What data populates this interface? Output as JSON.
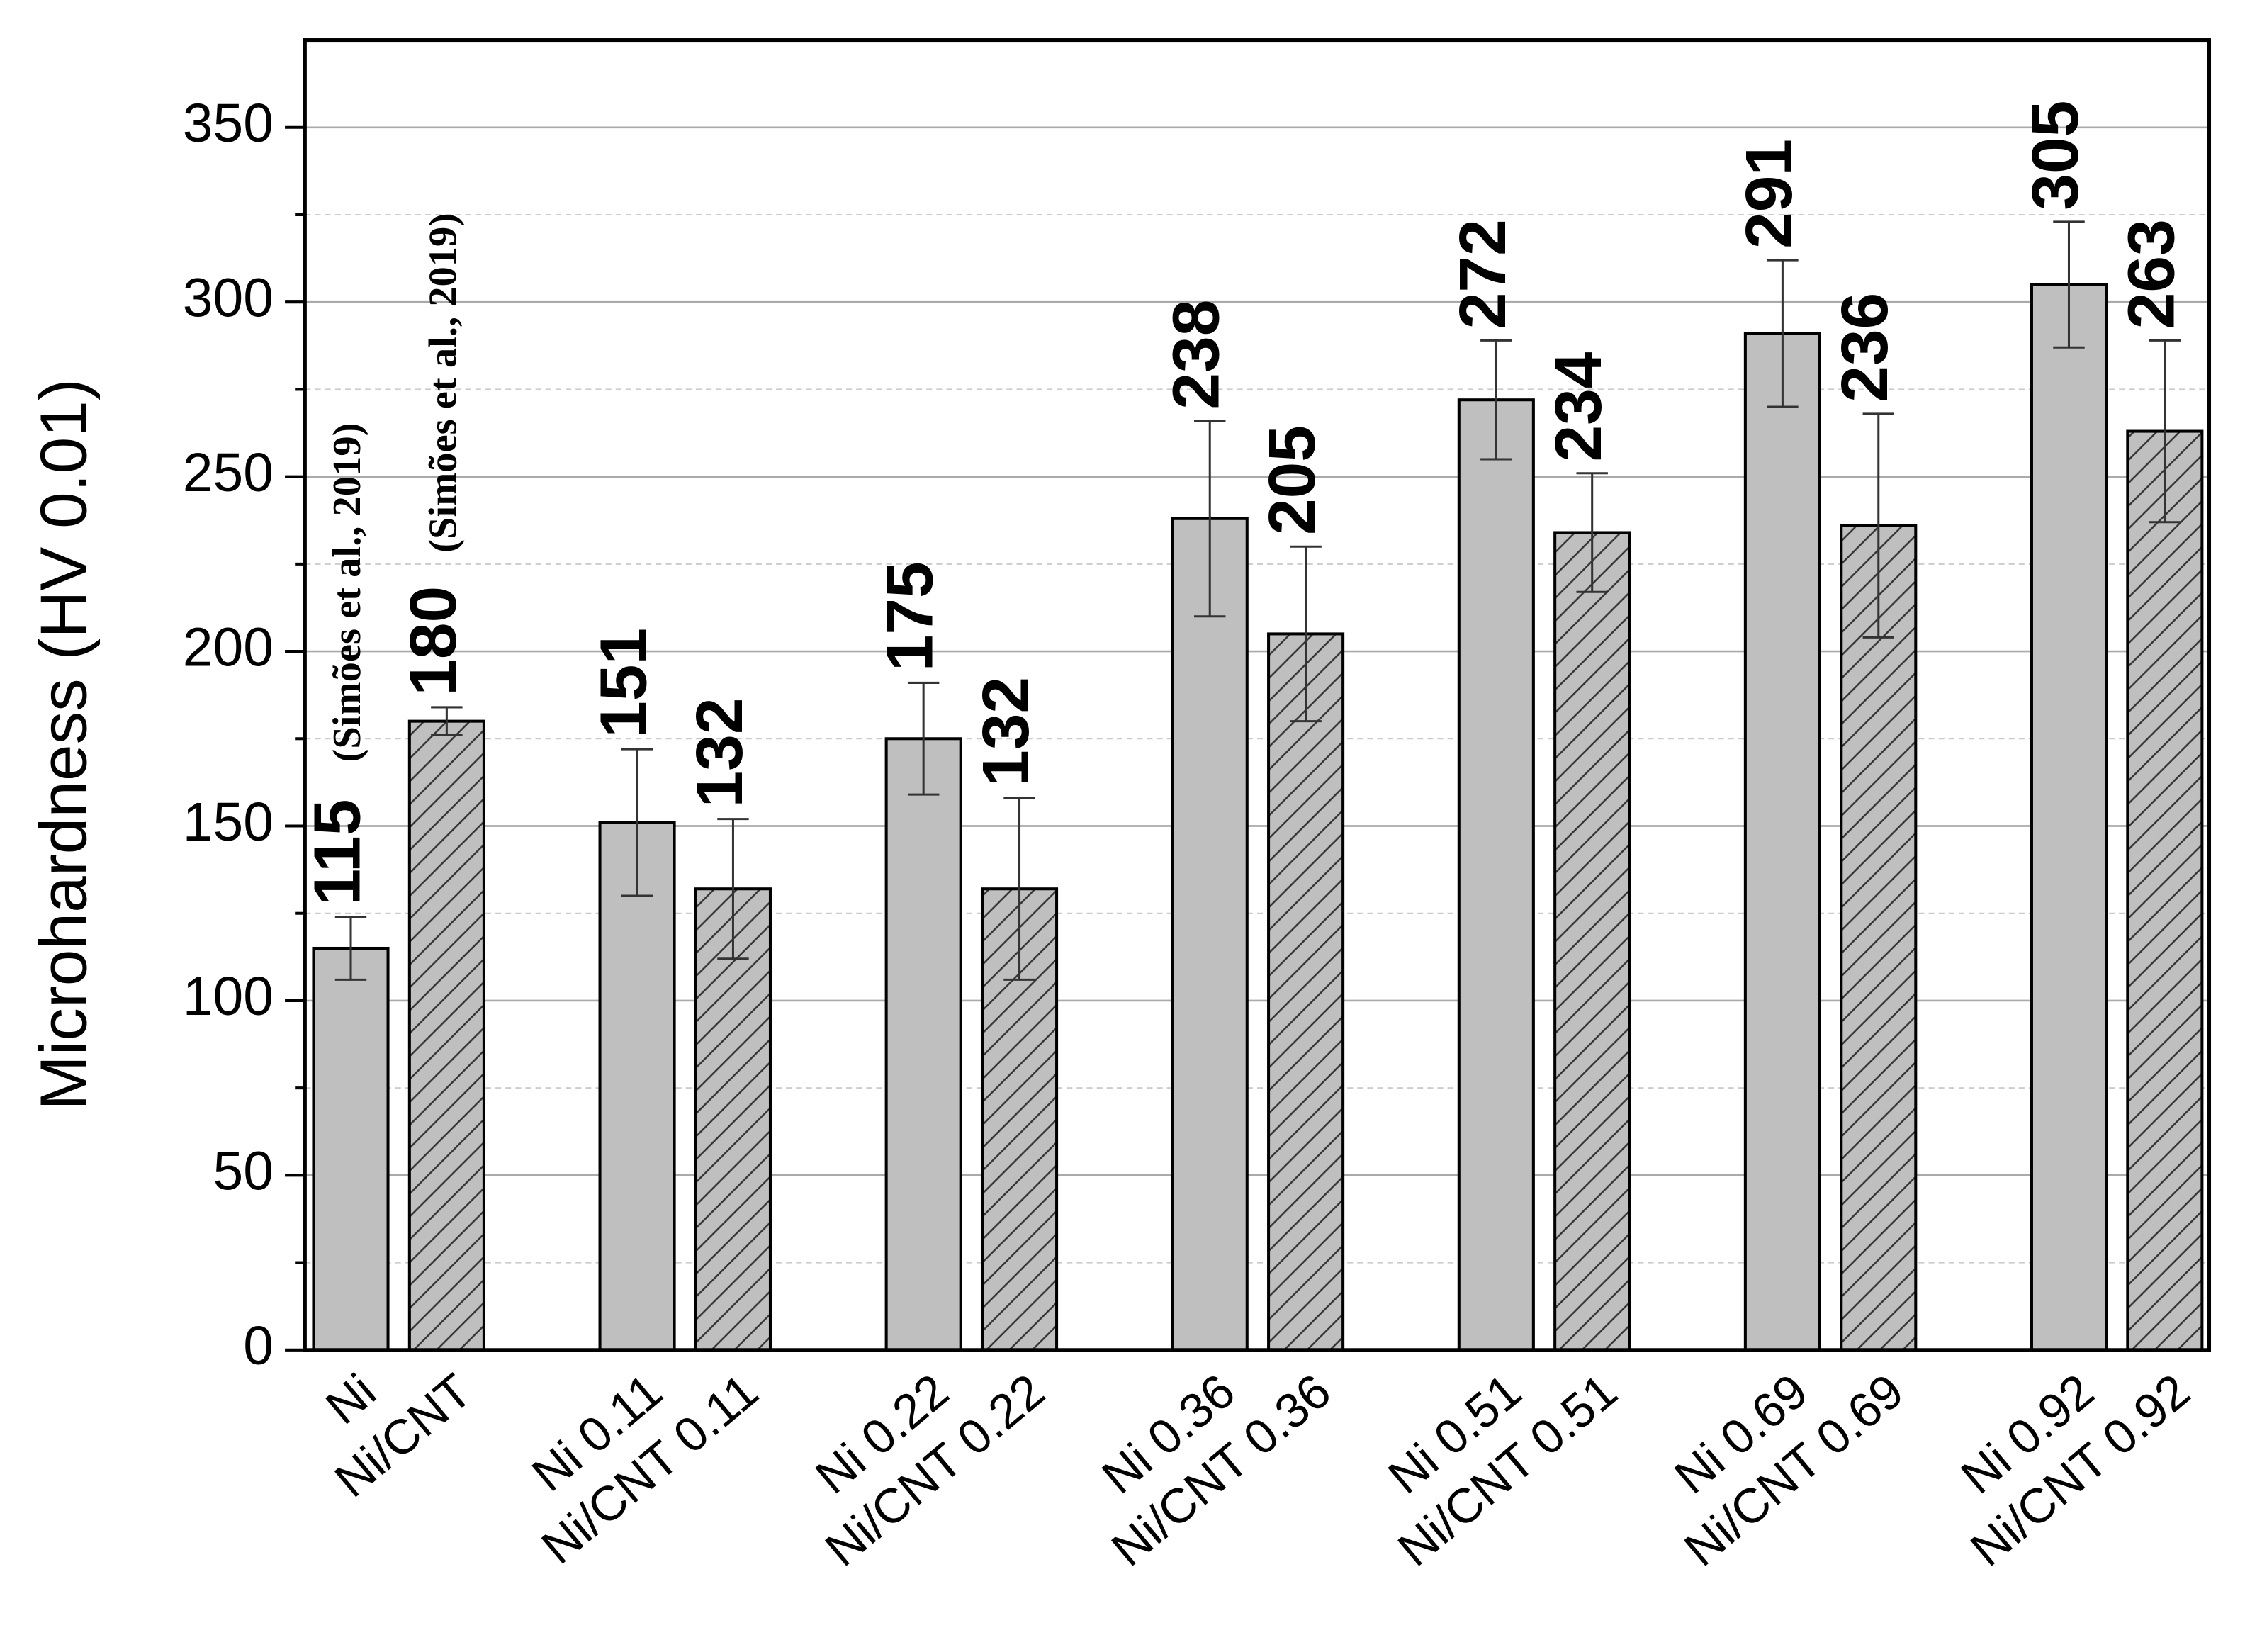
{
  "chart_data": {
    "type": "bar",
    "y_label": "Microhardness (HV 0.01)",
    "ylim": [
      0,
      375
    ],
    "yticks": [
      0,
      50,
      100,
      150,
      200,
      250,
      300,
      350
    ],
    "minor_yticks": [
      25,
      75,
      125,
      175,
      225,
      275,
      325
    ],
    "grid": true,
    "series": [
      {
        "color": "#bfbfbf",
        "hatch": false,
        "labels": [
          "Ni",
          "Ni 0.11",
          "Ni 0.22",
          "Ni 0.36",
          "Ni 0.51",
          "Ni 0.69",
          "Ni 0.92"
        ],
        "values": [
          115,
          151,
          175,
          238,
          272,
          291,
          305
        ],
        "errors": [
          9,
          21,
          16,
          28,
          17,
          21,
          18
        ]
      },
      {
        "color": "#bfbfbf",
        "hatch": true,
        "labels": [
          "Ni/CNT",
          "Ni/CNT 0.11",
          "Ni/CNT 0.22",
          "Ni/CNT 0.36",
          "Ni/CNT 0.51",
          "Ni/CNT 0.69",
          "Ni/CNT 0.92"
        ],
        "values": [
          180,
          132,
          132,
          205,
          234,
          236,
          263
        ],
        "errors": [
          4,
          20,
          26,
          25,
          17,
          32,
          26
        ]
      }
    ],
    "annotations": [
      "(Simões et al., 2019)",
      "(Simões et al., 2019)"
    ]
  }
}
